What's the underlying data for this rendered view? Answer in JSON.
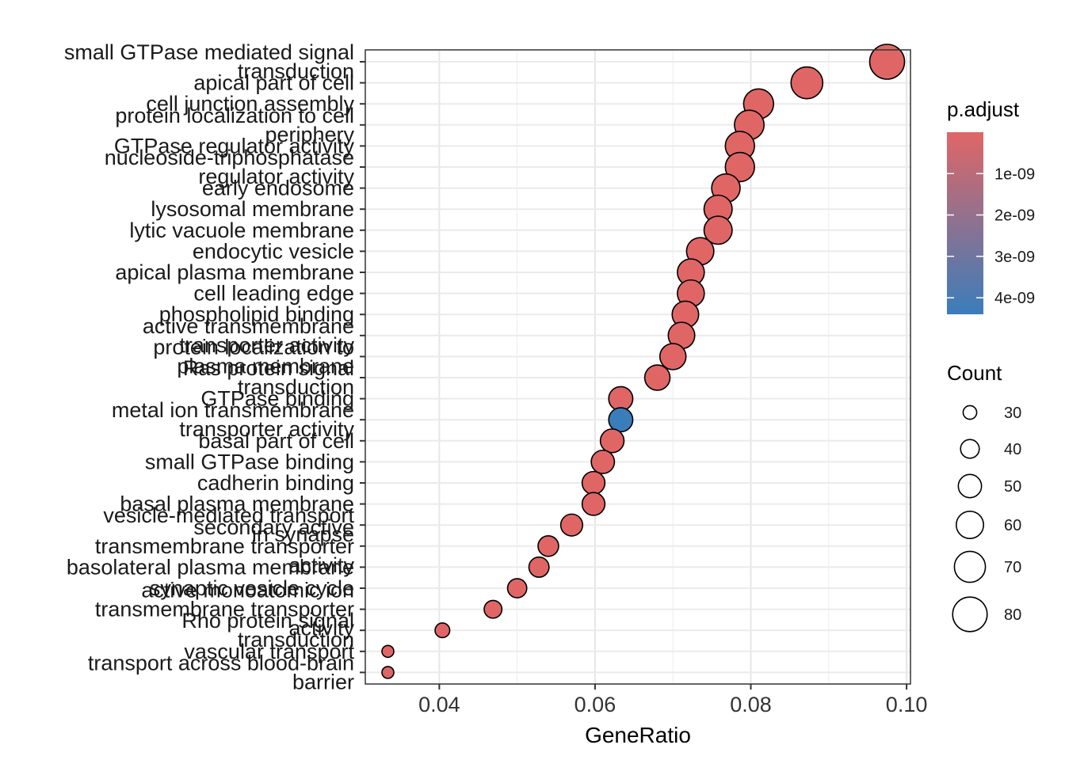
{
  "chart_data": {
    "type": "scatter",
    "title": "",
    "xlabel": "GeneRatio",
    "ylabel": "",
    "xlim": [
      0.0305,
      0.1005
    ],
    "xticks": [
      0.04,
      0.06,
      0.08,
      0.1
    ],
    "xtick_labels": [
      "0.04",
      "0.06",
      "0.08",
      "0.10"
    ],
    "grid": true,
    "legend_placement": "right",
    "color_scale": {
      "title": "p.adjust",
      "low_color": "#E06666",
      "high_color": "#3A7DBB",
      "min": 0,
      "max": 4.4e-09,
      "ticks": [
        1e-09,
        2e-09,
        3e-09,
        4e-09
      ],
      "tick_labels": [
        "1e-09",
        "2e-09",
        "3e-09",
        "4e-09"
      ]
    },
    "size_scale": {
      "title": "Count",
      "values": [
        30,
        40,
        50,
        60,
        70,
        80
      ],
      "labels": [
        "30",
        "40",
        "50",
        "60",
        "70",
        "80"
      ]
    },
    "points": [
      {
        "label": [
          "small GTPase mediated signal",
          "transduction"
        ],
        "x": 0.0975,
        "count": 81,
        "p": 0
      },
      {
        "label": [
          "apical part of cell"
        ],
        "x": 0.0872,
        "count": 72,
        "p": 0
      },
      {
        "label": [
          "cell junction assembly"
        ],
        "x": 0.081,
        "count": 67,
        "p": 0
      },
      {
        "label": [
          "protein localization to cell",
          "periphery"
        ],
        "x": 0.0798,
        "count": 66,
        "p": 0
      },
      {
        "label": [
          "GTPase regulator activity"
        ],
        "x": 0.0786,
        "count": 65,
        "p": 0
      },
      {
        "label": [
          "nucleoside-triphosphatase",
          "regulator activity"
        ],
        "x": 0.0786,
        "count": 65,
        "p": 0
      },
      {
        "label": [
          "early endosome"
        ],
        "x": 0.0768,
        "count": 63,
        "p": 0
      },
      {
        "label": [
          "lysosomal membrane"
        ],
        "x": 0.0758,
        "count": 62,
        "p": 0
      },
      {
        "label": [
          "lytic vacuole membrane"
        ],
        "x": 0.0758,
        "count": 62,
        "p": 0
      },
      {
        "label": [
          "endocytic vesicle"
        ],
        "x": 0.0735,
        "count": 60,
        "p": 0
      },
      {
        "label": [
          "apical plasma membrane"
        ],
        "x": 0.0723,
        "count": 59,
        "p": 0
      },
      {
        "label": [
          "cell leading edge"
        ],
        "x": 0.0723,
        "count": 59,
        "p": 0
      },
      {
        "label": [
          "phospholipid binding"
        ],
        "x": 0.0716,
        "count": 58,
        "p": 0
      },
      {
        "label": [
          "active transmembrane",
          "transporter activity"
        ],
        "x": 0.0711,
        "count": 58,
        "p": 0
      },
      {
        "label": [
          "protein localization to",
          "plasma membrane"
        ],
        "x": 0.07,
        "count": 57,
        "p": 0
      },
      {
        "label": [
          "Ras protein signal",
          "transduction"
        ],
        "x": 0.068,
        "count": 55,
        "p": 0
      },
      {
        "label": [
          "GTPase binding"
        ],
        "x": 0.0633,
        "count": 52,
        "p": 0
      },
      {
        "label": [
          "metal ion transmembrane",
          "transporter activity"
        ],
        "x": 0.0633,
        "count": 52,
        "p": 4.4e-09
      },
      {
        "label": [
          "basal part of cell"
        ],
        "x": 0.0622,
        "count": 51,
        "p": 0
      },
      {
        "label": [
          "small GTPase binding"
        ],
        "x": 0.061,
        "count": 50,
        "p": 0
      },
      {
        "label": [
          "cadherin binding"
        ],
        "x": 0.0598,
        "count": 49,
        "p": 0
      },
      {
        "label": [
          "basal plasma membrane"
        ],
        "x": 0.0598,
        "count": 49,
        "p": 0
      },
      {
        "label": [
          "vesicle-mediated transport",
          "in synapse"
        ],
        "x": 0.057,
        "count": 47,
        "p": 0
      },
      {
        "label": [
          "secondary active",
          "transmembrane transporter",
          "activity"
        ],
        "x": 0.054,
        "count": 44,
        "p": 0
      },
      {
        "label": [
          "basolateral plasma membrane"
        ],
        "x": 0.0528,
        "count": 43,
        "p": 0
      },
      {
        "label": [
          "synaptic vesicle cycle"
        ],
        "x": 0.05,
        "count": 41,
        "p": 0
      },
      {
        "label": [
          "active monoatomic ion",
          "transmembrane transporter",
          "activity"
        ],
        "x": 0.0469,
        "count": 38,
        "p": 0
      },
      {
        "label": [
          "Rho protein signal",
          "transduction"
        ],
        "x": 0.0404,
        "count": 32,
        "p": 0
      },
      {
        "label": [
          "vascular transport"
        ],
        "x": 0.0334,
        "count": 27,
        "p": 0
      },
      {
        "label": [
          "transport across blood-brain",
          "barrier"
        ],
        "x": 0.0334,
        "count": 27,
        "p": 0
      }
    ]
  }
}
